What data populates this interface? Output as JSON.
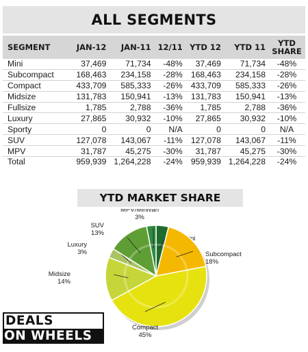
{
  "header": {
    "title": "ALL SEGMENTS"
  },
  "table": {
    "columns": [
      "SEGMENT",
      "JAN-12",
      "JAN-11",
      "12/11",
      "YTD 12",
      "YTD 11",
      "YTD SHARE"
    ],
    "rows": [
      [
        "Mini",
        "37,469",
        "71,734",
        "-48%",
        "37,469",
        "71,734",
        "-48%"
      ],
      [
        "Subcompact",
        "168,463",
        "234,158",
        "-28%",
        "168,463",
        "234,158",
        "-28%"
      ],
      [
        "Compact",
        "433,709",
        "585,333",
        "-26%",
        "433,709",
        "585,333",
        "-26%"
      ],
      [
        "Midsize",
        "131,783",
        "150,941",
        "-13%",
        "131,783",
        "150,941",
        "-13%"
      ],
      [
        "Fullsize",
        "1,785",
        "2,788",
        "-36%",
        "1,785",
        "2,788",
        "-36%"
      ],
      [
        "Luxury",
        "27,865",
        "30,932",
        "-10%",
        "27,865",
        "30,932",
        "-10%"
      ],
      [
        "Sporty",
        "0",
        "0",
        "N/A",
        "0",
        "0",
        "N/A"
      ],
      [
        "SUV",
        "127,078",
        "143,067",
        "-11%",
        "127,078",
        "143,067",
        "-11%"
      ],
      [
        "MPV",
        "31,787",
        "45,275",
        "-30%",
        "31,787",
        "45,275",
        "-30%"
      ],
      [
        "Total",
        "959,939",
        "1,264,228",
        "-24%",
        "959,939",
        "1,264,228",
        "-24%"
      ]
    ]
  },
  "market_share": {
    "title": "YTD MARKET SHARE"
  },
  "logo": {
    "line1": "DEALS",
    "line2": "ON WHEELS"
  },
  "chart_data": {
    "type": "pie",
    "title": "YTD MARKET SHARE",
    "categories": [
      "Mini",
      "Subcompact",
      "Compact",
      "Midsize",
      "Luxury",
      "SUV",
      "MPV/Minivan"
    ],
    "values": [
      4,
      18,
      45,
      14,
      3,
      13,
      3
    ],
    "labels": [
      "4%",
      "18%",
      "45%",
      "14%",
      "3%",
      "13%",
      "3%"
    ],
    "colors": [
      "#1f6b2e",
      "#f5b800",
      "#e6e20f",
      "#c6d63a",
      "#a9c464",
      "#5f9e34",
      "#2f8a3e"
    ]
  }
}
